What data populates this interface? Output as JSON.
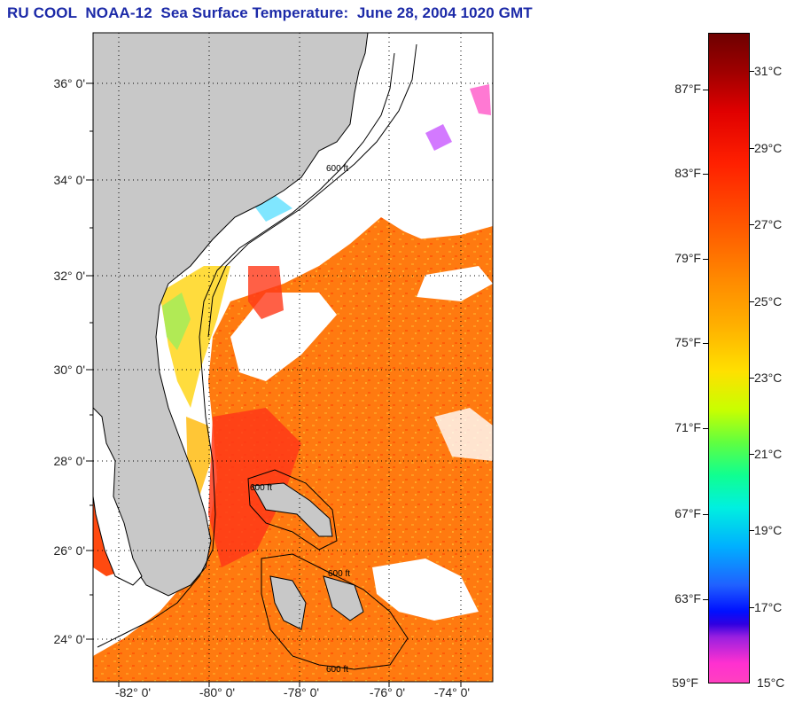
{
  "title": "RU COOL  NOAA-12  Sea Surface Temperature:  June 28, 2004 1020 GMT",
  "colors": {
    "land": "#c8c8c8",
    "cloud": "#ffffff",
    "warm_water": "#ff7a10",
    "hot_water": "#ff3010",
    "cool_water": "#ffd020"
  },
  "map": {
    "lat_labels": [
      "36° 0'",
      "34° 0'",
      "32° 0'",
      "30° 0'",
      "28° 0'",
      "26° 0'",
      "24° 0'"
    ],
    "lon_labels": [
      "-82° 0'",
      "-80° 0'",
      "-78° 0'",
      "-76° 0'",
      "-74° 0'"
    ],
    "contour_labels": [
      "600 ft",
      "600 ft",
      "600 ft",
      "600 ft"
    ]
  },
  "colorbar": {
    "fahrenheit": [
      "87°F",
      "83°F",
      "79°F",
      "75°F",
      "71°F",
      "67°F",
      "63°F",
      "59°F"
    ],
    "celsius": [
      "31°C",
      "29°C",
      "27°C",
      "25°C",
      "23°C",
      "21°C",
      "19°C",
      "17°C",
      "15°C"
    ]
  }
}
